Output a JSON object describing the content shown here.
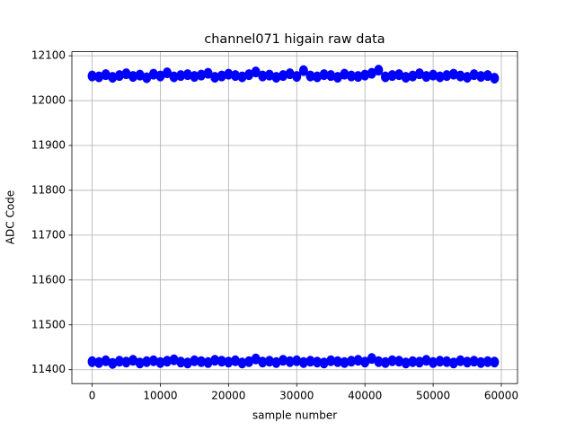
{
  "chart_data": {
    "type": "scatter",
    "title": "channel071 higain raw data",
    "xlabel": "sample number",
    "ylabel": "ADC Code",
    "x": [
      0,
      1000,
      2000,
      3000,
      4000,
      5000,
      6000,
      7000,
      8000,
      9000,
      10000,
      11000,
      12000,
      13000,
      14000,
      15000,
      16000,
      17000,
      18000,
      19000,
      20000,
      21000,
      22000,
      23000,
      24000,
      25000,
      26000,
      27000,
      28000,
      29000,
      30000,
      31000,
      32000,
      33000,
      34000,
      35000,
      36000,
      37000,
      38000,
      39000,
      40000,
      41000,
      42000,
      43000,
      44000,
      45000,
      46000,
      47000,
      48000,
      49000,
      50000,
      51000,
      52000,
      53000,
      54000,
      55000,
      56000,
      57000,
      58000,
      59000,
      0,
      1000,
      2000,
      3000,
      4000,
      5000,
      6000,
      7000,
      8000,
      9000,
      10000,
      11000,
      12000,
      13000,
      14000,
      15000,
      16000,
      17000,
      18000,
      19000,
      20000,
      21000,
      22000,
      23000,
      24000,
      25000,
      26000,
      27000,
      28000,
      29000,
      30000,
      31000,
      32000,
      33000,
      34000,
      35000,
      36000,
      37000,
      38000,
      39000,
      40000,
      41000,
      42000,
      43000,
      44000,
      45000,
      46000,
      47000,
      48000,
      49000,
      50000,
      51000,
      52000,
      53000,
      54000,
      55000,
      56000,
      57000,
      58000,
      59000
    ],
    "values": [
      12055,
      12053,
      12058,
      12052,
      12056,
      12060,
      12054,
      12057,
      12051,
      12059,
      12055,
      12062,
      12053,
      12056,
      12058,
      12054,
      12057,
      12061,
      12052,
      12055,
      12059,
      12056,
      12053,
      12058,
      12064,
      12055,
      12057,
      12052,
      12056,
      12060,
      12054,
      12067,
      12055,
      12053,
      12058,
      12056,
      12052,
      12059,
      12055,
      12054,
      12057,
      12061,
      12068,
      12053,
      12056,
      12058,
      12052,
      12055,
      12060,
      12054,
      12057,
      12053,
      12056,
      12059,
      12055,
      12052,
      12058,
      12054,
      12056,
      12050,
      11418,
      11416,
      11420,
      11414,
      11419,
      11417,
      11421,
      11415,
      11418,
      11420,
      11416,
      11419,
      11422,
      11417,
      11415,
      11420,
      11418,
      11416,
      11421,
      11419,
      11417,
      11420,
      11415,
      11418,
      11424,
      11417,
      11419,
      11416,
      11421,
      11418,
      11420,
      11416,
      11419,
      11417,
      11415,
      11420,
      11418,
      11416,
      11419,
      11421,
      11417,
      11425,
      11418,
      11416,
      11420,
      11419,
      11415,
      11418,
      11417,
      11421,
      11416,
      11419,
      11418,
      11415,
      11420,
      11417,
      11419,
      11416,
      11418,
      11417
    ],
    "color": "#0000ff",
    "xlim": [
      -2970,
      62370
    ],
    "xticks": [
      0,
      10000,
      20000,
      30000,
      40000,
      50000,
      60000
    ],
    "ylim": [
      11369,
      12109
    ],
    "yticks": [
      11400,
      11500,
      11600,
      11700,
      11800,
      11900,
      12000,
      12100
    ],
    "grid": true
  }
}
